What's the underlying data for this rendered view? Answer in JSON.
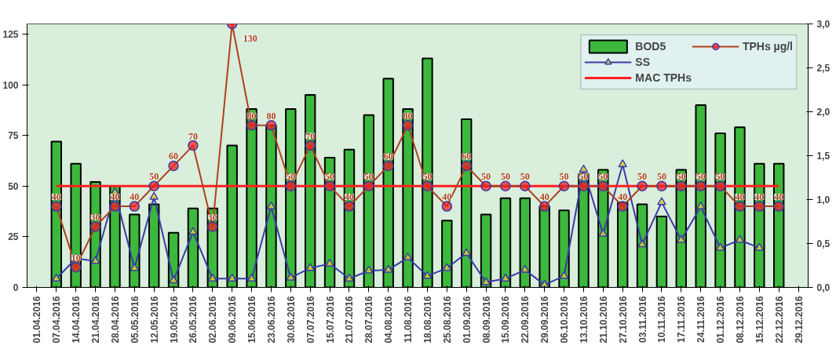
{
  "chart_data": {
    "type": "bar",
    "categories": [
      "01.04.2016",
      "07.04.2016",
      "14.04.2016",
      "21.04.2016",
      "28.04.2016",
      "05.05.2016",
      "12.05.2016",
      "19.05.2016",
      "26.05.2016",
      "02.06.2016",
      "09.06.2016",
      "15.06.2016",
      "23.06.2016",
      "30.06.2016",
      "07.07.2016",
      "15.07.2016",
      "21.07.2016",
      "28.07.2016",
      "04.08.2016",
      "11.08.2016",
      "18.08.2016",
      "25.08.2016",
      "01.09.2016",
      "08.09.2016",
      "15.09.2016",
      "22.09.2016",
      "29.09.2016",
      "06.10.2016",
      "13.10.2016",
      "21.10.2016",
      "27.10.2016",
      "03.11.2016",
      "10.11.2016",
      "17.11.2016",
      "24.11.2016",
      "01.12.2016",
      "08.12.2016",
      "15.12.2016",
      "22.12.2016",
      "29.12.2016"
    ],
    "series": [
      {
        "name": "BOD5",
        "color": "#3cb83c",
        "values": [
          null,
          72,
          61,
          52,
          50,
          36,
          41,
          27,
          39,
          39,
          70,
          88,
          80,
          88,
          95,
          64,
          68,
          85,
          103,
          88,
          113,
          33,
          83,
          36,
          44,
          44,
          40,
          38,
          56,
          58,
          42,
          41,
          35,
          58,
          90,
          76,
          79,
          61,
          61,
          null
        ]
      },
      {
        "name": "SS",
        "type": "line",
        "axis": "y2",
        "color": "#3a3aa8",
        "marker": "triangle",
        "values": [
          null,
          0.1,
          0.33,
          0.3,
          1.08,
          0.22,
          1.03,
          0.08,
          0.63,
          0.1,
          0.1,
          0.1,
          0.92,
          0.11,
          0.22,
          0.27,
          0.1,
          0.19,
          0.2,
          0.34,
          0.13,
          0.22,
          0.39,
          0.06,
          0.1,
          0.2,
          0.03,
          0.13,
          1.34,
          0.61,
          1.4,
          0.49,
          0.97,
          0.54,
          0.92,
          0.45,
          0.54,
          0.45,
          null,
          null
        ]
      },
      {
        "name": "MAC TPHs",
        "type": "line",
        "color": "#ff2020",
        "marker": "none",
        "values": [
          null,
          50,
          50,
          50,
          50,
          50,
          50,
          50,
          50,
          50,
          50,
          50,
          50,
          50,
          50,
          50,
          50,
          50,
          50,
          50,
          50,
          50,
          50,
          50,
          50,
          50,
          50,
          50,
          50,
          50,
          50,
          50,
          50,
          50,
          50,
          50,
          50,
          50,
          50,
          null
        ]
      },
      {
        "name": "TPHs µg/l",
        "type": "line",
        "color": "#b0401e",
        "marker": "circle",
        "values": [
          null,
          40,
          10,
          30,
          40,
          40,
          50,
          60,
          70,
          30,
          130,
          80,
          80,
          50,
          70,
          50,
          40,
          50,
          60,
          80,
          50,
          40,
          60,
          50,
          50,
          50,
          40,
          50,
          50,
          50,
          40,
          50,
          50,
          50,
          50,
          50,
          40,
          40,
          40,
          null
        ],
        "value_labels": [
          null,
          "40",
          "10",
          "30",
          "40",
          "40",
          "50",
          "60",
          "70",
          "30",
          "130",
          "80",
          "80",
          "50",
          "70",
          "50",
          "40",
          "50",
          "60",
          "80",
          "50",
          "40",
          "60",
          "50",
          "50",
          "50",
          "40",
          "50",
          "50",
          "50",
          "40",
          "50",
          "50",
          "50",
          "50",
          "50",
          "40",
          "40",
          "40",
          null
        ]
      }
    ],
    "ylim": [
      0,
      130
    ],
    "yticks": [
      0,
      25,
      50,
      75,
      100,
      125
    ],
    "y2lim": [
      0,
      3
    ],
    "y2ticks": [
      {
        "value": 0,
        "label": "0,0"
      },
      {
        "value": 0.5,
        "label": "0,5"
      },
      {
        "value": 1,
        "label": "1,0"
      },
      {
        "value": 1.5,
        "label": "1,5"
      },
      {
        "value": 2,
        "label": "2,0"
      },
      {
        "value": 2.5,
        "label": "2,5"
      },
      {
        "value": 3,
        "label": "3,0"
      }
    ],
    "grid": false,
    "legend": "top right"
  }
}
